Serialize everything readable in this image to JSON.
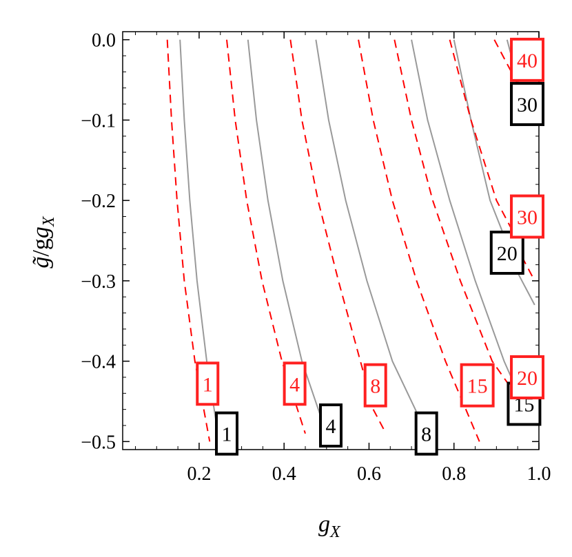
{
  "chart_data": {
    "type": "contour",
    "title": "",
    "xlabel": "g",
    "xlabel_sub": "X",
    "ylabel_top": "g̃",
    "ylabel_bottom": "/g",
    "ylabel_sub": "X",
    "xlim": [
      0.02,
      1.0
    ],
    "ylim": [
      -0.51,
      0.01
    ],
    "xticks": [
      0.2,
      0.4,
      0.6,
      0.8,
      1.0
    ],
    "xtick_labels": [
      "0.2",
      "0.4",
      "0.6",
      "0.8",
      "1.0"
    ],
    "yticks": [
      0.0,
      -0.1,
      -0.2,
      -0.3,
      -0.4,
      -0.5
    ],
    "ytick_labels": [
      "0.0",
      "−0.1",
      "−0.2",
      "−0.3",
      "−0.4",
      "−0.5"
    ],
    "grid": false,
    "series": [
      {
        "style": "solid",
        "color": "#999999",
        "contours": [
          {
            "label": "1",
            "points": [
              [
                0.155,
                0.0
              ],
              [
                0.165,
                -0.1
              ],
              [
                0.178,
                -0.2
              ],
              [
                0.195,
                -0.3
              ],
              [
                0.218,
                -0.4
              ],
              [
                0.25,
                -0.51
              ]
            ]
          },
          {
            "label": "4",
            "points": [
              [
                0.315,
                0.0
              ],
              [
                0.335,
                -0.1
              ],
              [
                0.362,
                -0.2
              ],
              [
                0.397,
                -0.3
              ],
              [
                0.442,
                -0.4
              ],
              [
                0.5,
                -0.49
              ]
            ]
          },
          {
            "label": "8",
            "points": [
              [
                0.475,
                0.0
              ],
              [
                0.505,
                -0.1
              ],
              [
                0.545,
                -0.2
              ],
              [
                0.595,
                -0.3
              ],
              [
                0.655,
                -0.4
              ],
              [
                0.718,
                -0.47
              ]
            ]
          },
          {
            "label": "15",
            "points": [
              [
                0.7,
                0.0
              ],
              [
                0.738,
                -0.1
              ],
              [
                0.79,
                -0.2
              ],
              [
                0.85,
                -0.3
              ],
              [
                0.918,
                -0.4
              ],
              [
                0.96,
                -0.45
              ]
            ]
          },
          {
            "label": "20",
            "points": [
              [
                0.8,
                0.0
              ],
              [
                0.84,
                -0.1
              ],
              [
                0.885,
                -0.2
              ],
              [
                0.93,
                -0.26
              ]
            ]
          },
          {
            "label": "20",
            "points": [
              [
                0.95,
                -0.29
              ],
              [
                0.99,
                -0.33
              ]
            ]
          },
          {
            "label": "30",
            "points": [
              [
                0.925,
                0.0
              ],
              [
                0.955,
                -0.06
              ]
            ]
          }
        ]
      },
      {
        "style": "dashed",
        "color": "#ff0000",
        "contours": [
          {
            "label": "1",
            "points": [
              [
                0.125,
                0.0
              ],
              [
                0.135,
                -0.1
              ],
              [
                0.148,
                -0.2
              ],
              [
                0.165,
                -0.3
              ],
              [
                0.19,
                -0.4
              ],
              [
                0.225,
                -0.5
              ]
            ]
          },
          {
            "label": "4",
            "points": [
              [
                0.265,
                0.0
              ],
              [
                0.285,
                -0.1
              ],
              [
                0.312,
                -0.2
              ],
              [
                0.348,
                -0.3
              ],
              [
                0.395,
                -0.4
              ],
              [
                0.45,
                -0.49
              ]
            ]
          },
          {
            "label": "8",
            "points": [
              [
                0.415,
                0.0
              ],
              [
                0.442,
                -0.1
              ],
              [
                0.48,
                -0.2
              ],
              [
                0.528,
                -0.3
              ],
              [
                0.59,
                -0.42
              ]
            ]
          },
          {
            "label": "8",
            "points": [
              [
                0.61,
                -0.46
              ],
              [
                0.64,
                -0.49
              ]
            ]
          },
          {
            "label": "15",
            "points": [
              [
                0.575,
                0.0
              ],
              [
                0.61,
                -0.1
              ],
              [
                0.655,
                -0.2
              ],
              [
                0.712,
                -0.3
              ],
              [
                0.78,
                -0.4
              ],
              [
                0.86,
                -0.5
              ]
            ]
          },
          {
            "label": "20",
            "points": [
              [
                0.66,
                0.0
              ],
              [
                0.7,
                -0.1
              ],
              [
                0.75,
                -0.2
              ],
              [
                0.815,
                -0.3
              ],
              [
                0.89,
                -0.4
              ],
              [
                0.93,
                -0.43
              ]
            ]
          },
          {
            "label": "30",
            "points": [
              [
                0.79,
                0.0
              ],
              [
                0.84,
                -0.1
              ],
              [
                0.9,
                -0.2
              ],
              [
                0.94,
                -0.24
              ]
            ]
          },
          {
            "label": "30",
            "points": [
              [
                0.96,
                -0.27
              ],
              [
                0.99,
                -0.3
              ]
            ]
          },
          {
            "label": "40",
            "points": [
              [
                0.895,
                0.0
              ],
              [
                0.955,
                -0.06
              ],
              [
                0.99,
                -0.1
              ]
            ]
          }
        ]
      }
    ],
    "labels": [
      {
        "text": "1",
        "series": "solid",
        "x": 0.265,
        "y": -0.49
      },
      {
        "text": "4",
        "series": "solid",
        "x": 0.51,
        "y": -0.48
      },
      {
        "text": "8",
        "series": "solid",
        "x": 0.735,
        "y": -0.49
      },
      {
        "text": "15",
        "series": "solid",
        "x": 0.965,
        "y": -0.453
      },
      {
        "text": "20",
        "series": "solid",
        "x": 0.925,
        "y": -0.265
      },
      {
        "text": "30",
        "series": "solid",
        "x": 0.99,
        "y": -0.08
      },
      {
        "text": "1",
        "series": "dashed",
        "x": 0.22,
        "y": -0.428
      },
      {
        "text": "4",
        "series": "dashed",
        "x": 0.425,
        "y": -0.428
      },
      {
        "text": "8",
        "series": "dashed",
        "x": 0.615,
        "y": -0.43
      },
      {
        "text": "15",
        "series": "dashed",
        "x": 0.855,
        "y": -0.43
      },
      {
        "text": "20",
        "series": "dashed",
        "x": 0.99,
        "y": -0.42
      },
      {
        "text": "30",
        "series": "dashed",
        "x": 0.99,
        "y": -0.22
      },
      {
        "text": "40",
        "series": "dashed",
        "x": 0.99,
        "y": -0.025
      }
    ]
  }
}
